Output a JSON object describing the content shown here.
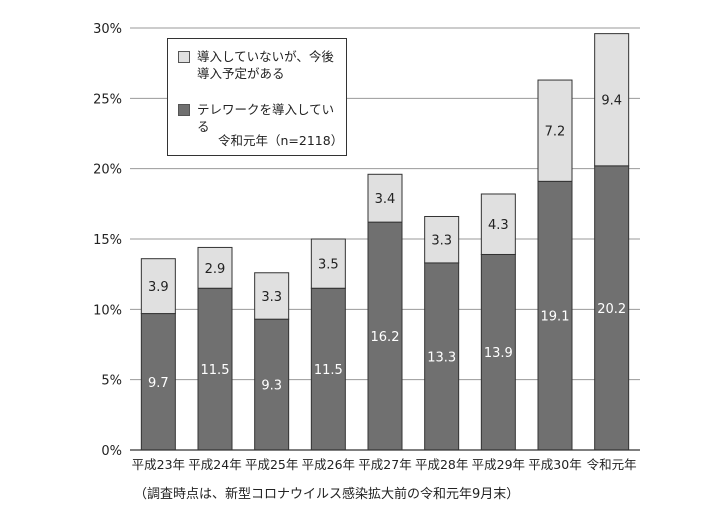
{
  "chart_data": {
    "type": "bar",
    "stacked": true,
    "categories": [
      "平成23年",
      "平成24年",
      "平成25年",
      "平成26年",
      "平成27年",
      "平成28年",
      "平成29年",
      "平成30年",
      "令和元年"
    ],
    "series": [
      {
        "name": "テレワークを導入している",
        "values": [
          9.7,
          11.5,
          9.3,
          11.5,
          16.2,
          13.3,
          13.9,
          19.1,
          20.2
        ],
        "color": "#707070",
        "label_color": "#ffffff"
      },
      {
        "name": "導入していないが、今後導入予定がある",
        "values": [
          3.9,
          2.9,
          3.3,
          3.5,
          3.4,
          3.3,
          4.3,
          7.2,
          9.4
        ],
        "color": "#e0e0e0",
        "label_color": "#222222"
      }
    ],
    "yticks": [
      "0%",
      "5%",
      "10%",
      "15%",
      "20%",
      "25%",
      "30%"
    ],
    "ylim": [
      0,
      30
    ],
    "grid": true,
    "legend_position": "top-left",
    "legend": {
      "entries": [
        {
          "line1": "導入していないが、今後",
          "line2": "導入予定がある",
          "color": "#e0e0e0"
        },
        {
          "line1": "テレワークを導入している",
          "line2": "",
          "color": "#707070"
        }
      ],
      "note": "令和元年（n=2118）"
    },
    "footnote": "（調査時点は、新型コロナウイルス感染拡大前の令和元年9月末）"
  }
}
